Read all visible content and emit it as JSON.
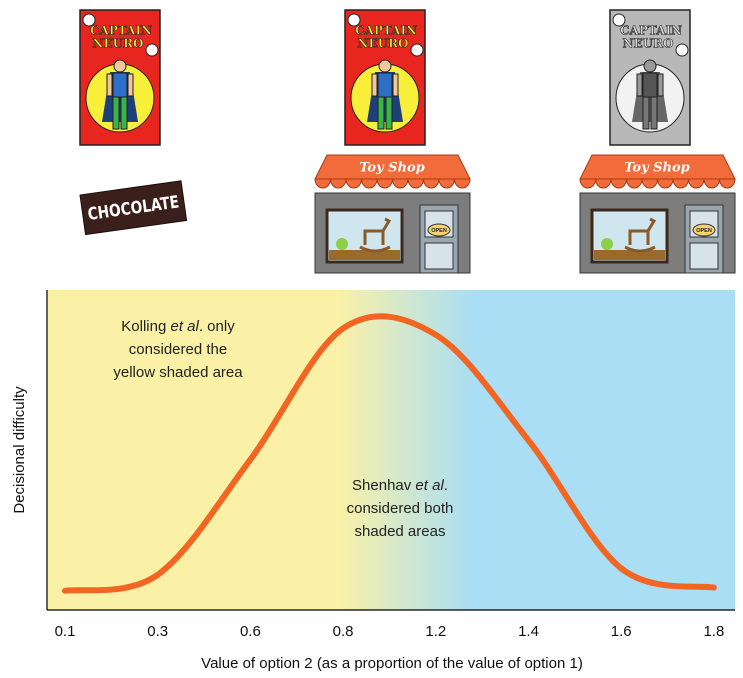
{
  "chart_data": {
    "type": "line",
    "categories": [
      "0.1",
      "0.3",
      "0.6",
      "0.8",
      "1.2",
      "1.4",
      "1.6",
      "1.8"
    ],
    "values": [
      0.06,
      0.11,
      0.47,
      0.88,
      0.86,
      0.53,
      0.13,
      0.07
    ],
    "color": "#f26522",
    "ylim": [
      0,
      1
    ],
    "x_label": "Value of option 2 (as a proportion of the value of option 1)",
    "y_label": "Decisional difficulty",
    "annotations": [
      [
        [
          "Kolling ",
          "et al",
          ". only"
        ],
        [
          "considered the"
        ],
        [
          "yellow shaded area"
        ]
      ],
      [
        [
          "Shenhav ",
          "et al",
          "."
        ],
        [
          "considered both"
        ],
        [
          "shaded areas"
        ]
      ]
    ]
  },
  "illustrations": {
    "comic_title_1": "CAPTAIN",
    "comic_title_2": "NEURO",
    "chocolate": "CHOCOLATE",
    "shop_sign": "Toy Shop",
    "open_sign": "OPEN"
  }
}
